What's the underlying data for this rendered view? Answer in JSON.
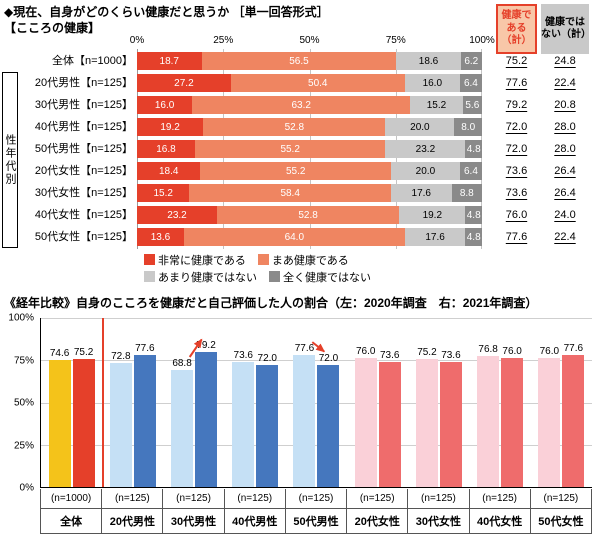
{
  "top_chart": {
    "title": "◆現在、自身がどのくらい健康だと思うか ［単一回答形式］",
    "subtitle": "【こころの健康】",
    "group_label": "性年代別",
    "axis_ticks": [
      "0%",
      "25%",
      "50%",
      "75%",
      "100%"
    ],
    "summary_headers": [
      "健康である（計）",
      "健康ではない（計）"
    ],
    "legend": [
      "非常に健康である",
      "まあ健康である",
      "あまり健康ではない",
      "全く健康ではない"
    ],
    "segment_colors": [
      "#e5402a",
      "#ef8561",
      "#c9c9c9",
      "#8a8a8a"
    ],
    "healthy_box": {
      "bg": "#f8c7a8",
      "border": "#e5402a",
      "text": "#e5402a"
    },
    "unhealthy_box": {
      "bg": "#c9c9c9",
      "text": "#000000"
    }
  },
  "bottom_chart": {
    "title": "《経年比較》自身のこころを健康だと自己評価した人の割合（左：2020年調査　右：2021年調査）",
    "y_ticks": [
      "100%",
      "75%",
      "50%",
      "25%",
      "0%"
    ],
    "divider_color": "#e5402a",
    "arrow_color": "#e5402a"
  },
  "chart_data": [
    {
      "type": "bar",
      "stacked": true,
      "orientation": "horizontal",
      "title": "現在、自身がどのくらい健康だと思うか【こころの健康】",
      "xlim": [
        0,
        100
      ],
      "categories": [
        "全体【n=1000】",
        "20代男性【n=125】",
        "30代男性【n=125】",
        "40代男性【n=125】",
        "50代男性【n=125】",
        "20代女性【n=125】",
        "30代女性【n=125】",
        "40代女性【n=125】",
        "50代女性【n=125】"
      ],
      "series": [
        {
          "name": "非常に健康である",
          "values": [
            18.7,
            27.2,
            16.0,
            19.2,
            16.8,
            18.4,
            15.2,
            23.2,
            13.6
          ]
        },
        {
          "name": "まあ健康である",
          "values": [
            56.5,
            50.4,
            63.2,
            52.8,
            55.2,
            55.2,
            58.4,
            52.8,
            64.0
          ]
        },
        {
          "name": "あまり健康ではない",
          "values": [
            18.6,
            16.0,
            15.2,
            20.0,
            23.2,
            20.0,
            17.6,
            19.2,
            17.6
          ]
        },
        {
          "name": "全く健康ではない",
          "values": [
            6.2,
            6.4,
            5.6,
            8.0,
            4.8,
            6.4,
            8.8,
            4.8,
            4.8
          ]
        }
      ],
      "healthy_total": [
        75.2,
        77.6,
        79.2,
        72.0,
        72.0,
        73.6,
        73.6,
        76.0,
        77.6
      ],
      "not_healthy_total": [
        24.8,
        22.4,
        20.8,
        28.0,
        28.0,
        26.4,
        26.4,
        24.0,
        22.4
      ]
    },
    {
      "type": "bar",
      "grouped": true,
      "title": "《経年比較》自身のこころを健康だと自己評価した人の割合",
      "ylim": [
        0,
        100
      ],
      "categories": [
        "全体",
        "20代男性",
        "30代男性",
        "40代男性",
        "50代男性",
        "20代女性",
        "30代女性",
        "40代女性",
        "50代女性"
      ],
      "n_labels": [
        "(n=1000)",
        "(n=125)",
        "(n=125)",
        "(n=125)",
        "(n=125)",
        "(n=125)",
        "(n=125)",
        "(n=125)",
        "(n=125)"
      ],
      "series": [
        {
          "name": "2020年調査",
          "values": [
            74.6,
            72.8,
            68.8,
            73.6,
            77.6,
            76.0,
            75.2,
            76.8,
            76.0
          ],
          "colors": [
            "#f4c31a",
            "#c5e0f5",
            "#c5e0f5",
            "#c5e0f5",
            "#c5e0f5",
            "#fad0d8",
            "#fad0d8",
            "#fad0d8",
            "#fad0d8"
          ]
        },
        {
          "name": "2021年調査",
          "values": [
            75.2,
            77.6,
            79.2,
            72.0,
            72.0,
            73.6,
            73.6,
            76.0,
            77.6
          ],
          "colors": [
            "#e5402a",
            "#4577be",
            "#4577be",
            "#4577be",
            "#4577be",
            "#ef6c6c",
            "#ef6c6c",
            "#ef6c6c",
            "#ef6c6c"
          ]
        }
      ],
      "highlight_arrows": [
        {
          "category_index": 2
        },
        {
          "category_index": 4
        }
      ]
    }
  ]
}
